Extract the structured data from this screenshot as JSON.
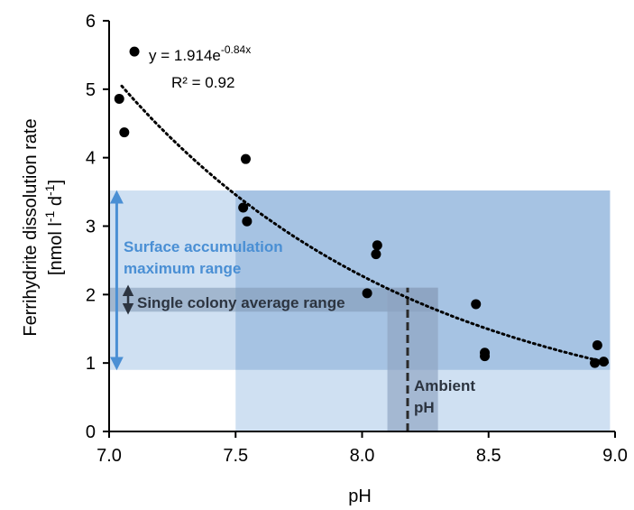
{
  "chart_data": {
    "type": "scatter",
    "xlabel": "pH",
    "ylabel_line1": "Ferrihydrite dissolution rate",
    "ylabel_line2": "[nmol l",
    "ylabel_sup1": "-1",
    "ylabel_mid": " d",
    "ylabel_sup2": "-1",
    "ylabel_end": "]",
    "xlim": [
      7.0,
      9.0
    ],
    "ylim": [
      0,
      6
    ],
    "x_ticks": [
      "7.0",
      "7.5",
      "8.0",
      "8.5",
      "9.0"
    ],
    "y_ticks": [
      "0",
      "1",
      "2",
      "3",
      "4",
      "5",
      "6"
    ],
    "points": [
      {
        "x": 7.04,
        "y": 4.86
      },
      {
        "x": 7.06,
        "y": 4.37
      },
      {
        "x": 7.1,
        "y": 5.55
      },
      {
        "x": 7.53,
        "y": 3.27
      },
      {
        "x": 7.54,
        "y": 3.98
      },
      {
        "x": 7.545,
        "y": 3.07
      },
      {
        "x": 8.02,
        "y": 2.02
      },
      {
        "x": 8.055,
        "y": 2.59
      },
      {
        "x": 8.06,
        "y": 2.72
      },
      {
        "x": 8.45,
        "y": 1.86
      },
      {
        "x": 8.485,
        "y": 1.15
      },
      {
        "x": 8.485,
        "y": 1.1
      },
      {
        "x": 8.92,
        "y": 1.0
      },
      {
        "x": 8.93,
        "y": 1.26
      },
      {
        "x": 8.955,
        "y": 1.02
      }
    ],
    "fit": {
      "a": 1.914,
      "b": -0.84,
      "x_from": 7.05,
      "x_to": 8.97,
      "equation_prefix": "y = 1.914e",
      "equation_exp": "-0.84x",
      "r2_label": "R² = 0.92"
    },
    "regions": {
      "surface_range": {
        "y_min": 0.9,
        "y_max": 3.52,
        "x_min": 7.0,
        "x_max": 8.98
      },
      "ph_range": {
        "x_min": 7.5,
        "x_max": 8.98,
        "y_min": 0,
        "y_max": 3.52
      },
      "colony_range": {
        "y_min": 1.75,
        "y_max": 2.1,
        "x_min": 7.0,
        "x_max": 8.3
      },
      "ambient_band": {
        "x_min": 8.1,
        "x_max": 8.3,
        "y_min": 0,
        "y_max": 2.1
      },
      "ambient_ph": 8.18
    },
    "annotations": {
      "surface_line1": "Surface accumulation",
      "surface_line2": "maximum range",
      "colony": "Single colony average range",
      "ambient_line1": "Ambient",
      "ambient_line2": "pH"
    },
    "colors": {
      "light_region": "#cfe0f2",
      "mid_region": "#a6c3e3",
      "colony_band": "#7e95b3",
      "ambient_band": "#8ea3c0",
      "blue_arrow": "#4a8fd4",
      "dark_arrow": "#2c3440",
      "points": "#000000"
    },
    "grid": false,
    "legend": "none"
  }
}
